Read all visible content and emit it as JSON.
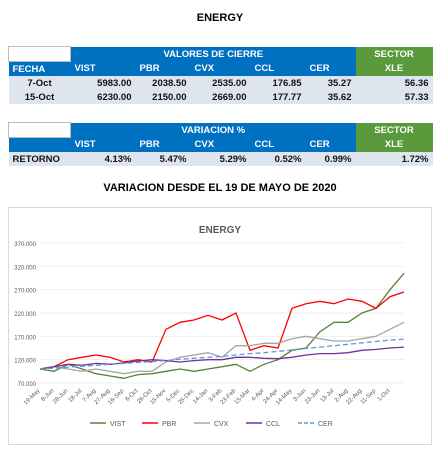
{
  "header": {
    "title": "ENERGY"
  },
  "table1": {
    "group_header": "VALORES DE CIERRE",
    "sector": "SECTOR",
    "columns": [
      "FECHA",
      "VIST",
      "PBR",
      "CVX",
      "CCL",
      "CER",
      "XLE"
    ],
    "rows": [
      [
        "7-Oct",
        "5983.00",
        "2038.50",
        "2535.00",
        "176.85",
        "35.27",
        "56.36"
      ],
      [
        "15-Oct",
        "6230.00",
        "2150.00",
        "2669.00",
        "177.77",
        "35.62",
        "57.33"
      ]
    ]
  },
  "table2": {
    "group_header": "VARIACION %",
    "sector": "SECTOR",
    "columns": [
      "VIST",
      "PBR",
      "CVX",
      "CCL",
      "CER",
      "XLE"
    ],
    "rows": [
      [
        "RETORNO",
        "4.13%",
        "5.47%",
        "5.29%",
        "0.52%",
        "0.99%",
        "1.72%"
      ]
    ]
  },
  "subtitle": "VARIACION DESDE EL 19 DE MAYO DE 2020",
  "chart_data": {
    "type": "line",
    "title": "ENERGY",
    "categories": [
      "19-May",
      "8-Jun",
      "28-Jun",
      "18-Jul",
      "7-Aug",
      "27-Aug",
      "16-Sep",
      "6-Oct",
      "26-Oct",
      "15-Nov",
      "5-Dec",
      "25-Dec",
      "14-Jan",
      "3-Feb",
      "23-Feb",
      "15-Mar",
      "4-Apr",
      "24-Apr",
      "14-May",
      "3-Jun",
      "23-Jun",
      "13-Jul",
      "2-Aug",
      "22-Aug",
      "11-Sep",
      "1-Oct",
      null
    ],
    "ylim": [
      70,
      370
    ],
    "yticks": [
      {
        "value": 70,
        "label": "70.000"
      },
      {
        "value": 120,
        "label": "120.000"
      },
      {
        "value": 170,
        "label": "170.000"
      },
      {
        "value": 220,
        "label": "220.000"
      },
      {
        "value": 270,
        "label": "270.000"
      },
      {
        "value": 320,
        "label": "320.000"
      },
      {
        "value": 370,
        "label": "370.000"
      }
    ],
    "grid": true,
    "series": [
      {
        "name": "VIST",
        "color": "#548235",
        "dash": false,
        "values": [
          100,
          95,
          110,
          100,
          90,
          85,
          80,
          88,
          90,
          95,
          100,
          95,
          100,
          105,
          110,
          95,
          110,
          120,
          140,
          145,
          180,
          200,
          200,
          220,
          230,
          270,
          305
        ]
      },
      {
        "name": "PBR",
        "color": "#ff0000",
        "dash": false,
        "values": [
          100,
          105,
          120,
          125,
          130,
          125,
          115,
          120,
          115,
          185,
          200,
          205,
          215,
          205,
          220,
          140,
          150,
          145,
          230,
          240,
          245,
          240,
          250,
          245,
          230,
          255,
          265
        ]
      },
      {
        "name": "CVX",
        "color": "#a5a5a5",
        "dash": false,
        "values": [
          100,
          105,
          100,
          95,
          100,
          95,
          90,
          95,
          95,
          115,
          125,
          130,
          135,
          125,
          150,
          150,
          155,
          155,
          165,
          170,
          165,
          160,
          160,
          165,
          170,
          185,
          200
        ]
      },
      {
        "name": "CCL",
        "color": "#7030a0",
        "dash": false,
        "values": [
          100,
          105,
          110,
          108,
          112,
          110,
          113,
          117,
          120,
          118,
          115,
          118,
          120,
          120,
          125,
          125,
          123,
          122,
          125,
          130,
          133,
          133,
          135,
          140,
          142,
          145,
          147
        ]
      },
      {
        "name": "CER",
        "color": "#5b9bd5",
        "dash": true,
        "values": [
          100,
          102,
          104,
          106,
          108,
          110,
          112,
          114,
          116,
          118,
          121,
          123,
          125,
          127,
          130,
          133,
          135,
          138,
          141,
          144,
          147,
          150,
          153,
          156,
          159,
          162,
          164
        ]
      }
    ]
  }
}
